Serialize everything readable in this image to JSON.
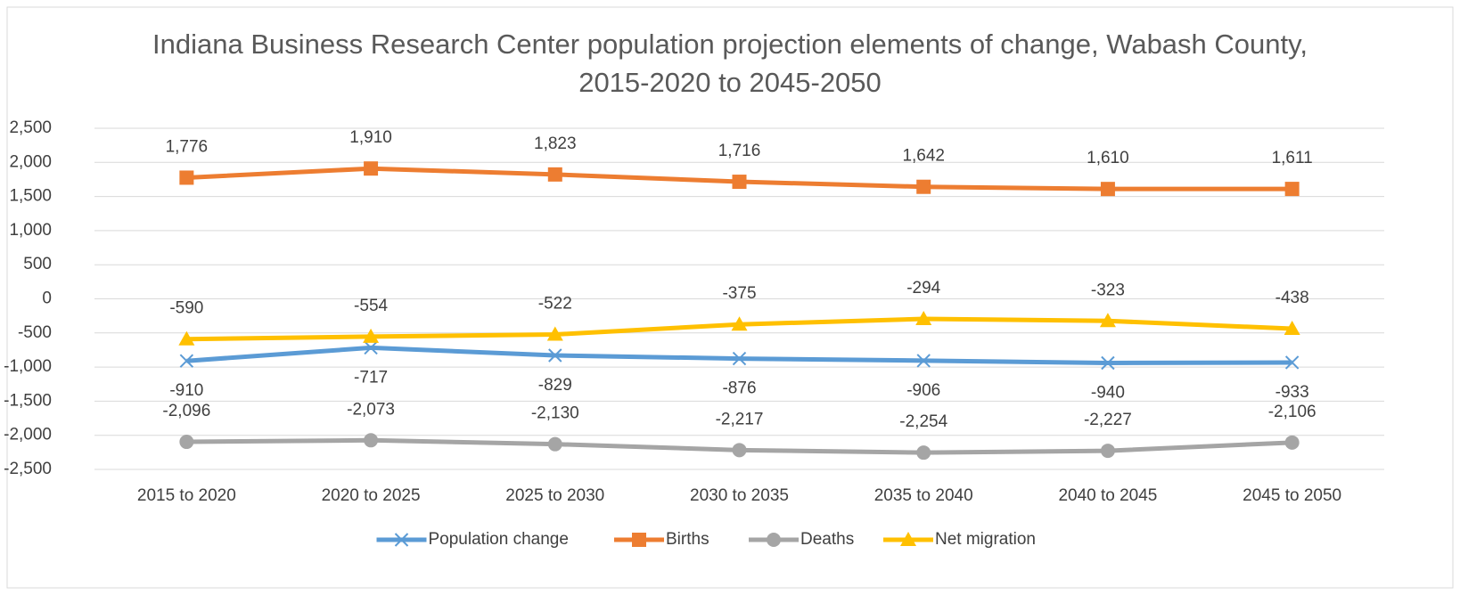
{
  "chart_data": {
    "type": "line",
    "title": "Indiana Business Research Center population projection elements of change, Wabash County, 2015-2020 to 2045-2050",
    "categories": [
      "2015 to 2020",
      "2020 to 2025",
      "2025 to 2030",
      "2030 to 2035",
      "2035 to 2040",
      "2040 to 2045",
      "2045 to 2050"
    ],
    "series": [
      {
        "name": "Population change",
        "color": "#5b9bd5",
        "marker": "x",
        "values": [
          -910,
          -717,
          -829,
          -876,
          -906,
          -940,
          -933
        ],
        "value_labels": [
          "-910",
          "-717",
          "-829",
          "-876",
          "-906",
          "-940",
          "-933"
        ]
      },
      {
        "name": "Births",
        "color": "#ed7d31",
        "marker": "square",
        "values": [
          1776,
          1910,
          1823,
          1716,
          1642,
          1610,
          1611
        ],
        "value_labels": [
          "1,776",
          "1,910",
          "1,823",
          "1,716",
          "1,642",
          "1,610",
          "1,611"
        ]
      },
      {
        "name": "Deaths",
        "color": "#a5a5a5",
        "marker": "circle",
        "values": [
          -2096,
          -2073,
          -2130,
          -2217,
          -2254,
          -2227,
          -2106
        ],
        "value_labels": [
          "-2,096",
          "-2,073",
          "-2,130",
          "-2,217",
          "-2,254",
          "-2,227",
          "-2,106"
        ]
      },
      {
        "name": "Net migration",
        "color": "#ffc000",
        "marker": "triangle",
        "values": [
          -590,
          -554,
          -522,
          -375,
          -294,
          -323,
          -438
        ],
        "value_labels": [
          "-590",
          "-554",
          "-522",
          "-375",
          "-294",
          "-323",
          "-438"
        ]
      }
    ],
    "ylim": [
      -2500,
      2500
    ],
    "yticks": [
      {
        "value": 2500,
        "label": "2,500"
      },
      {
        "value": 2000,
        "label": "2,000"
      },
      {
        "value": 1500,
        "label": "1,500"
      },
      {
        "value": 1000,
        "label": "1,000"
      },
      500,
      0,
      -500,
      {
        "value": -1000,
        "label": "-1,000"
      },
      {
        "value": -1500,
        "label": "-1,500"
      },
      {
        "value": -2000,
        "label": "-2,000"
      },
      {
        "value": -2500,
        "label": "-2,500"
      }
    ],
    "grid": true,
    "legend": "bottom"
  }
}
